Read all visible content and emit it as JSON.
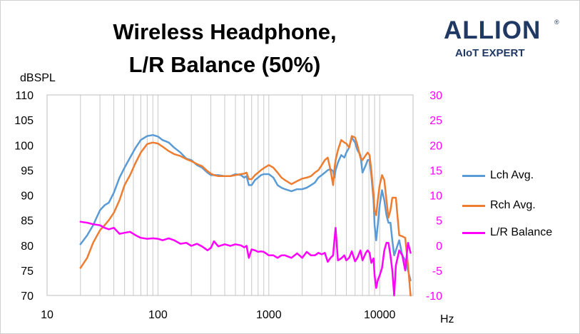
{
  "chart_data": {
    "type": "line",
    "title": "Wireless Headphone,\nL/R Balance (50%)",
    "logo": {
      "name": "ALLION",
      "tagline": "AIoT EXPERT"
    },
    "xlabel": "Hz",
    "ylabel": "dBSPL",
    "x_scale": "log",
    "xlim": [
      10,
      20000
    ],
    "x_ticks": [
      10,
      100,
      1000,
      10000
    ],
    "ylim": [
      70,
      110
    ],
    "y_ticks": [
      70,
      75,
      80,
      85,
      90,
      95,
      100,
      105,
      110
    ],
    "y2lim": [
      -10,
      30
    ],
    "y2_ticks": [
      -10,
      -5,
      0,
      5,
      10,
      15,
      20,
      25,
      30
    ],
    "grid": "vertical",
    "legend_position": "right",
    "series": [
      {
        "name": "Lch Avg.",
        "axis": "left",
        "color": "#5b9bd5",
        "x": [
          20,
          23,
          26,
          30,
          33,
          36,
          40,
          45,
          50,
          56,
          63,
          70,
          80,
          90,
          100,
          110,
          125,
          140,
          160,
          180,
          200,
          225,
          250,
          280,
          300,
          320,
          350,
          400,
          450,
          500,
          560,
          600,
          630,
          660,
          700,
          750,
          800,
          850,
          900,
          1000,
          1100,
          1200,
          1300,
          1400,
          1600,
          1800,
          2000,
          2200,
          2400,
          2600,
          2800,
          3000,
          3200,
          3400,
          3600,
          3800,
          3900,
          4000,
          4200,
          4500,
          4800,
          5000,
          5300,
          5600,
          6000,
          6300,
          6700,
          7000,
          7500,
          7800,
          8100,
          8400,
          8800,
          9000,
          9300,
          9600,
          10000,
          10500,
          11000,
          11500,
          12000,
          12500,
          13000,
          13500,
          14000,
          15000,
          16000,
          17000,
          18000,
          19000
        ],
        "values": [
          80.2,
          82,
          84,
          87,
          88,
          88.5,
          90.5,
          93.5,
          95.5,
          97.5,
          99.5,
          101,
          101.8,
          102,
          101.7,
          101,
          100.5,
          99.5,
          98.5,
          97.3,
          97,
          96,
          95.5,
          94.5,
          94,
          94,
          94,
          93.8,
          93.8,
          94.2,
          94,
          93.5,
          93.8,
          92,
          92,
          93,
          93.5,
          94,
          94.2,
          94.2,
          93.5,
          92,
          91.5,
          91.2,
          90.8,
          91.2,
          91.2,
          91.5,
          92,
          92.5,
          93.5,
          94,
          94.5,
          95,
          95.2,
          94.8,
          93.5,
          95,
          96.5,
          98,
          97.5,
          98.5,
          99.5,
          101.5,
          100.5,
          99,
          98,
          94.5,
          96,
          97,
          97,
          94,
          89,
          84,
          81,
          84,
          88,
          91,
          89,
          86,
          84.5,
          84.5,
          81,
          78,
          79,
          81,
          78,
          77,
          75,
          73
        ]
      },
      {
        "name": "Rch Avg.",
        "axis": "left",
        "color": "#ed7d31",
        "x": [
          20,
          23,
          26,
          30,
          33,
          36,
          40,
          45,
          50,
          56,
          63,
          70,
          80,
          90,
          100,
          110,
          125,
          140,
          160,
          180,
          200,
          225,
          250,
          280,
          300,
          320,
          350,
          400,
          450,
          500,
          560,
          600,
          630,
          660,
          700,
          750,
          800,
          850,
          900,
          1000,
          1100,
          1200,
          1300,
          1400,
          1600,
          1800,
          2000,
          2200,
          2400,
          2600,
          2800,
          3000,
          3200,
          3400,
          3600,
          3800,
          3900,
          4000,
          4200,
          4500,
          4800,
          5000,
          5300,
          5600,
          6000,
          6300,
          6700,
          7000,
          7500,
          7800,
          8100,
          8400,
          8800,
          9000,
          9300,
          9600,
          10000,
          10500,
          11000,
          11500,
          12000,
          12500,
          13000,
          13500,
          14000,
          15000,
          16000,
          17000,
          18000,
          19000
        ],
        "values": [
          75.5,
          77.5,
          80.5,
          83,
          84,
          85,
          86.5,
          89,
          92,
          94,
          96.5,
          98.5,
          100.2,
          100.5,
          100.3,
          99.7,
          98.8,
          98.2,
          97.8,
          97.2,
          96.8,
          96.2,
          95.8,
          94.8,
          94.3,
          94,
          93.8,
          93.8,
          93.8,
          94,
          94.2,
          94.3,
          94.5,
          93.2,
          93.2,
          94,
          94.5,
          95,
          95.4,
          96,
          95.5,
          94.5,
          93.5,
          93,
          92.2,
          92.8,
          93.3,
          93.5,
          93.8,
          94.5,
          95,
          96,
          97,
          97.5,
          95,
          92,
          95,
          97,
          99,
          101,
          100.5,
          100.3,
          99.5,
          101.8,
          101.5,
          100,
          97.5,
          97,
          98,
          98.5,
          98,
          95,
          90,
          87,
          86,
          89,
          92,
          94,
          93,
          89,
          85.5,
          87,
          89.5,
          89.5,
          89.5,
          82,
          81.8,
          81.5,
          76,
          70
        ]
      },
      {
        "name": "L/R Balance",
        "axis": "right",
        "color": "#ff00ff",
        "x": [
          20,
          23,
          26,
          30,
          33,
          36,
          40,
          45,
          50,
          56,
          63,
          70,
          80,
          90,
          100,
          110,
          125,
          140,
          160,
          180,
          200,
          225,
          250,
          280,
          300,
          320,
          350,
          400,
          450,
          500,
          560,
          600,
          630,
          660,
          700,
          750,
          800,
          850,
          900,
          1000,
          1100,
          1200,
          1300,
          1400,
          1600,
          1800,
          2000,
          2200,
          2400,
          2600,
          2800,
          3000,
          3200,
          3400,
          3600,
          3800,
          3900,
          4000,
          4200,
          4500,
          4800,
          5000,
          5300,
          5600,
          6000,
          6300,
          6700,
          7000,
          7500,
          7800,
          8100,
          8400,
          8800,
          9000,
          9300,
          9600,
          10000,
          10500,
          11000,
          11500,
          12000,
          12500,
          13000,
          13500,
          14000,
          15000,
          16000,
          17000,
          18000,
          19000
        ],
        "values": [
          4.7,
          4.5,
          4.2,
          4,
          3.5,
          3.2,
          3.5,
          2.3,
          2.5,
          2.7,
          2,
          1.5,
          1.3,
          1.4,
          1.3,
          1,
          1.4,
          1,
          0.3,
          0.5,
          -0.1,
          0.3,
          -0.2,
          -1,
          -0.5,
          0.8,
          -0.2,
          0.2,
          -0.1,
          0.2,
          0,
          -0.4,
          -0.1,
          -2.5,
          -0.8,
          -1,
          -1.3,
          -1.2,
          -1.3,
          -2,
          -2,
          -2.5,
          -2,
          -2,
          -2.5,
          -1.6,
          -2.5,
          -1.3,
          -2,
          -2,
          -1.5,
          -1.8,
          -1.5,
          -3.3,
          -2.5,
          -2,
          1,
          3.5,
          -3,
          -2.6,
          -2,
          -3,
          -2.5,
          -1.2,
          -3.2,
          -2.5,
          -1,
          -3,
          -1.5,
          -1,
          -1.5,
          -3.5,
          -2.6,
          -6,
          -8.5,
          -7,
          -6,
          -4.5,
          -1,
          0.5,
          0.5,
          -2,
          -5,
          -10,
          -4,
          -1,
          -2,
          -5,
          0.5,
          -1.5
        ]
      }
    ]
  }
}
